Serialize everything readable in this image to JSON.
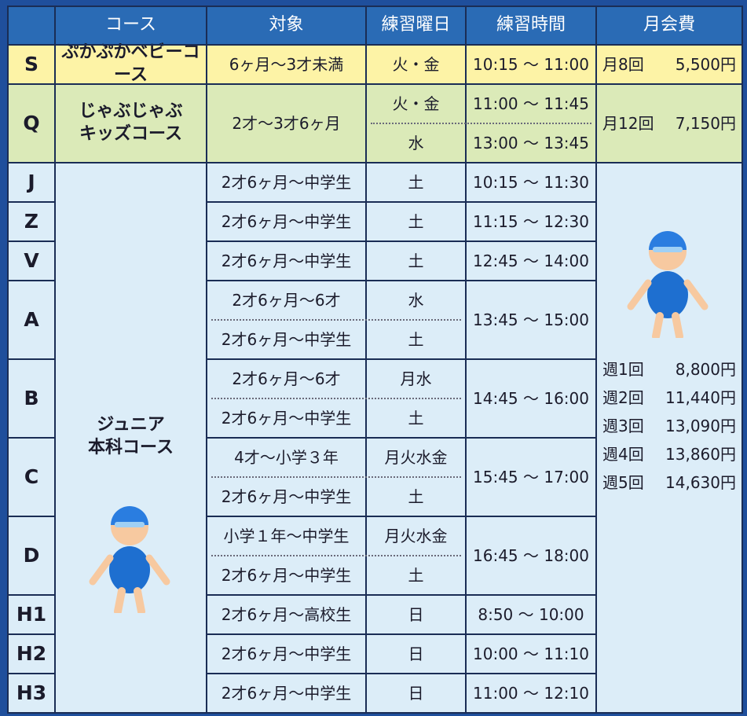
{
  "table": {
    "header": [
      "コース",
      "対象",
      "練習曜日",
      "練習時間",
      "月会費"
    ],
    "baby": {
      "code": "S",
      "course": "ぷかぷかベビーコース",
      "target": "6ヶ月〜3才未満",
      "days": "火・金",
      "time": "10:15 〜 11:00",
      "fee": {
        "plan": "月8回",
        "price": "5,500円"
      }
    },
    "kids": {
      "code": "Q",
      "course": [
        "じゃぶじゃぶ",
        "キッズコース"
      ],
      "target": "2才〜3才6ヶ月",
      "sessions": [
        {
          "days": "火・金",
          "time": "11:00 〜 11:45"
        },
        {
          "days": "水",
          "time": "13:00 〜 13:45"
        }
      ],
      "fee": {
        "plan": "月12回",
        "price": "7,150円"
      }
    },
    "junior": {
      "course": [
        "ジュニア",
        "本科コース"
      ],
      "fees": [
        {
          "plan": "週1回",
          "price": "8,800円"
        },
        {
          "plan": "週2回",
          "price": "11,440円"
        },
        {
          "plan": "週3回",
          "price": "13,090円"
        },
        {
          "plan": "週4回",
          "price": "13,860円"
        },
        {
          "plan": "週5回",
          "price": "14,630円"
        }
      ],
      "classes": [
        {
          "code": "J",
          "time": "10:15 〜 11:30",
          "sessions": [
            {
              "target": "2才6ヶ月〜中学生",
              "days": "土"
            }
          ]
        },
        {
          "code": "Z",
          "time": "11:15 〜 12:30",
          "sessions": [
            {
              "target": "2才6ヶ月〜中学生",
              "days": "土"
            }
          ]
        },
        {
          "code": "V",
          "time": "12:45 〜 14:00",
          "sessions": [
            {
              "target": "2才6ヶ月〜中学生",
              "days": "土"
            }
          ]
        },
        {
          "code": "A",
          "time": "13:45 〜 15:00",
          "sessions": [
            {
              "target": "2才6ヶ月〜6才",
              "days": "水"
            },
            {
              "target": "2才6ヶ月〜中学生",
              "days": "土"
            }
          ]
        },
        {
          "code": "B",
          "time": "14:45 〜 16:00",
          "sessions": [
            {
              "target": "2才6ヶ月〜6才",
              "days": "月水"
            },
            {
              "target": "2才6ヶ月〜中学生",
              "days": "土"
            }
          ]
        },
        {
          "code": "C",
          "time": "15:45 〜 17:00",
          "sessions": [
            {
              "target": "4才〜小学３年",
              "days": "月火水金"
            },
            {
              "target": "2才6ヶ月〜中学生",
              "days": "土"
            }
          ]
        },
        {
          "code": "D",
          "time": "16:45 〜 18:00",
          "sessions": [
            {
              "target": "小学１年〜中学生",
              "days": "月火水金"
            },
            {
              "target": "2才6ヶ月〜中学生",
              "days": "土"
            }
          ]
        },
        {
          "code": "H1",
          "time": "8:50 〜 10:00",
          "sessions": [
            {
              "target": "2才6ヶ月〜高校生",
              "days": "日"
            }
          ]
        },
        {
          "code": "H2",
          "time": "10:00 〜 11:10",
          "sessions": [
            {
              "target": "2才6ヶ月〜中学生",
              "days": "日"
            }
          ]
        },
        {
          "code": "H3",
          "time": "11:00 〜 12:10",
          "sessions": [
            {
              "target": "2才6ヶ月〜中学生",
              "days": "日"
            }
          ]
        }
      ]
    }
  }
}
